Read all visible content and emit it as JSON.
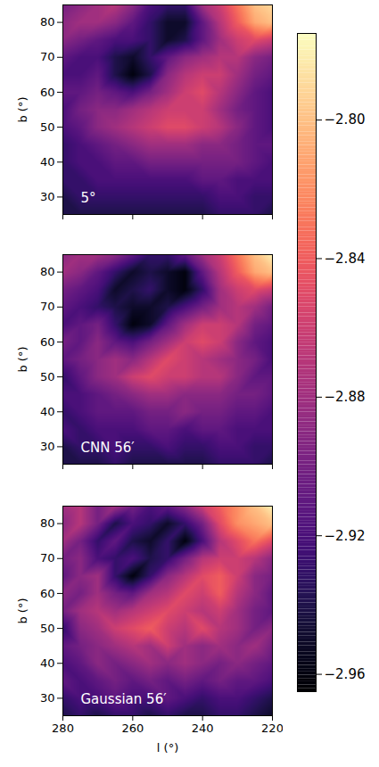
{
  "chart_data": {
    "type": "heatmap",
    "xlabel": "l (°)",
    "ylabel": "b (°)",
    "xlim": [
      280,
      220
    ],
    "ylim": [
      25,
      85
    ],
    "xticks": [
      280,
      260,
      240,
      220
    ],
    "yticks": [
      30,
      40,
      50,
      60,
      70,
      80
    ],
    "color": "magma",
    "zlim": [
      -2.965,
      -2.775
    ],
    "zticks": [
      {
        "value": -2.8,
        "label": "−2.80"
      },
      {
        "value": -2.84,
        "label": "−2.84"
      },
      {
        "value": -2.88,
        "label": "−2.88"
      },
      {
        "value": -2.92,
        "label": "−2.92"
      },
      {
        "value": -2.96,
        "label": "−2.96"
      }
    ],
    "l": [
      280,
      275,
      270,
      265,
      260,
      255,
      250,
      245,
      240,
      235,
      230,
      225,
      220
    ],
    "b": [
      85,
      80,
      75,
      70,
      65,
      60,
      55,
      50,
      45,
      40,
      35,
      30,
      25
    ],
    "panels": [
      {
        "title": "5°",
        "cells": [
          [
            -2.9,
            -2.89,
            -2.88,
            -2.87,
            -2.89,
            -2.92,
            -2.93,
            -2.93,
            -2.88,
            -2.86,
            -2.83,
            -2.8,
            -2.79
          ],
          [
            -2.89,
            -2.88,
            -2.88,
            -2.89,
            -2.91,
            -2.93,
            -2.95,
            -2.95,
            -2.91,
            -2.87,
            -2.84,
            -2.81,
            -2.8
          ],
          [
            -2.89,
            -2.9,
            -2.91,
            -2.92,
            -2.92,
            -2.93,
            -2.95,
            -2.94,
            -2.91,
            -2.88,
            -2.86,
            -2.85,
            -2.86
          ],
          [
            -2.91,
            -2.92,
            -2.92,
            -2.94,
            -2.95,
            -2.93,
            -2.91,
            -2.89,
            -2.88,
            -2.87,
            -2.87,
            -2.89,
            -2.9
          ],
          [
            -2.92,
            -2.92,
            -2.91,
            -2.94,
            -2.96,
            -2.94,
            -2.89,
            -2.87,
            -2.86,
            -2.86,
            -2.88,
            -2.9,
            -2.91
          ],
          [
            -2.91,
            -2.91,
            -2.9,
            -2.91,
            -2.92,
            -2.9,
            -2.88,
            -2.86,
            -2.85,
            -2.87,
            -2.89,
            -2.91,
            -2.92
          ],
          [
            -2.92,
            -2.9,
            -2.89,
            -2.89,
            -2.88,
            -2.87,
            -2.86,
            -2.86,
            -2.86,
            -2.88,
            -2.9,
            -2.91,
            -2.92
          ],
          [
            -2.92,
            -2.91,
            -2.89,
            -2.88,
            -2.87,
            -2.86,
            -2.85,
            -2.85,
            -2.86,
            -2.87,
            -2.89,
            -2.91,
            -2.92
          ],
          [
            -2.93,
            -2.92,
            -2.91,
            -2.9,
            -2.89,
            -2.88,
            -2.88,
            -2.88,
            -2.89,
            -2.89,
            -2.9,
            -2.91,
            -2.91
          ],
          [
            -2.93,
            -2.92,
            -2.92,
            -2.91,
            -2.91,
            -2.9,
            -2.9,
            -2.9,
            -2.9,
            -2.9,
            -2.9,
            -2.91,
            -2.92
          ],
          [
            -2.93,
            -2.93,
            -2.92,
            -2.92,
            -2.92,
            -2.92,
            -2.92,
            -2.92,
            -2.91,
            -2.91,
            -2.92,
            -2.92,
            -2.92
          ],
          [
            -2.94,
            -2.93,
            -2.93,
            -2.93,
            -2.93,
            -2.93,
            -2.93,
            -2.93,
            -2.93,
            -2.92,
            -2.92,
            -2.93,
            -2.93
          ],
          [
            -2.94,
            -2.94,
            -2.94,
            -2.94,
            -2.94,
            -2.94,
            -2.94,
            -2.94,
            -2.94,
            -2.93,
            -2.93,
            -2.93,
            -2.94
          ]
        ]
      },
      {
        "title": "CNN 56′",
        "cells": [
          [
            -2.89,
            -2.88,
            -2.88,
            -2.89,
            -2.91,
            -2.93,
            -2.93,
            -2.91,
            -2.88,
            -2.86,
            -2.83,
            -2.8,
            -2.78
          ],
          [
            -2.88,
            -2.89,
            -2.91,
            -2.93,
            -2.95,
            -2.94,
            -2.95,
            -2.96,
            -2.91,
            -2.87,
            -2.84,
            -2.81,
            -2.8
          ],
          [
            -2.9,
            -2.91,
            -2.92,
            -2.95,
            -2.94,
            -2.93,
            -2.95,
            -2.96,
            -2.93,
            -2.88,
            -2.86,
            -2.85,
            -2.86
          ],
          [
            -2.91,
            -2.92,
            -2.93,
            -2.94,
            -2.95,
            -2.95,
            -2.94,
            -2.92,
            -2.9,
            -2.88,
            -2.87,
            -2.88,
            -2.9
          ],
          [
            -2.92,
            -2.91,
            -2.9,
            -2.93,
            -2.96,
            -2.95,
            -2.91,
            -2.88,
            -2.86,
            -2.86,
            -2.87,
            -2.9,
            -2.91
          ],
          [
            -2.9,
            -2.91,
            -2.89,
            -2.91,
            -2.92,
            -2.9,
            -2.88,
            -2.86,
            -2.85,
            -2.86,
            -2.89,
            -2.91,
            -2.92
          ],
          [
            -2.91,
            -2.9,
            -2.89,
            -2.88,
            -2.89,
            -2.87,
            -2.85,
            -2.86,
            -2.87,
            -2.88,
            -2.89,
            -2.9,
            -2.92
          ],
          [
            -2.93,
            -2.91,
            -2.89,
            -2.88,
            -2.86,
            -2.85,
            -2.86,
            -2.86,
            -2.87,
            -2.87,
            -2.89,
            -2.91,
            -2.91
          ],
          [
            -2.92,
            -2.92,
            -2.91,
            -2.9,
            -2.89,
            -2.88,
            -2.88,
            -2.89,
            -2.89,
            -2.89,
            -2.9,
            -2.9,
            -2.91
          ],
          [
            -2.93,
            -2.92,
            -2.91,
            -2.91,
            -2.91,
            -2.9,
            -2.9,
            -2.89,
            -2.9,
            -2.9,
            -2.91,
            -2.91,
            -2.92
          ],
          [
            -2.92,
            -2.93,
            -2.92,
            -2.92,
            -2.92,
            -2.91,
            -2.91,
            -2.92,
            -2.91,
            -2.91,
            -2.92,
            -2.92,
            -2.92
          ],
          [
            -2.94,
            -2.93,
            -2.93,
            -2.92,
            -2.93,
            -2.93,
            -2.92,
            -2.93,
            -2.93,
            -2.92,
            -2.92,
            -2.93,
            -2.93
          ],
          [
            -2.94,
            -2.94,
            -2.94,
            -2.93,
            -2.94,
            -2.94,
            -2.94,
            -2.94,
            -2.94,
            -2.93,
            -2.93,
            -2.93,
            -2.94
          ]
        ]
      },
      {
        "title": "Gaussian 56′",
        "cells": [
          [
            -2.88,
            -2.87,
            -2.9,
            -2.88,
            -2.9,
            -2.92,
            -2.91,
            -2.89,
            -2.86,
            -2.84,
            -2.82,
            -2.8,
            -2.78
          ],
          [
            -2.89,
            -2.87,
            -2.9,
            -2.94,
            -2.92,
            -2.93,
            -2.95,
            -2.93,
            -2.9,
            -2.85,
            -2.82,
            -2.81,
            -2.8
          ],
          [
            -2.88,
            -2.9,
            -2.93,
            -2.91,
            -2.94,
            -2.95,
            -2.93,
            -2.96,
            -2.92,
            -2.87,
            -2.85,
            -2.83,
            -2.85
          ],
          [
            -2.9,
            -2.89,
            -2.92,
            -2.93,
            -2.92,
            -2.94,
            -2.93,
            -2.9,
            -2.87,
            -2.86,
            -2.86,
            -2.87,
            -2.89
          ],
          [
            -2.91,
            -2.89,
            -2.88,
            -2.93,
            -2.96,
            -2.93,
            -2.89,
            -2.87,
            -2.85,
            -2.84,
            -2.86,
            -2.89,
            -2.9
          ],
          [
            -2.89,
            -2.9,
            -2.88,
            -2.9,
            -2.91,
            -2.88,
            -2.87,
            -2.85,
            -2.86,
            -2.84,
            -2.87,
            -2.89,
            -2.91
          ],
          [
            -2.9,
            -2.88,
            -2.87,
            -2.88,
            -2.87,
            -2.86,
            -2.85,
            -2.86,
            -2.87,
            -2.86,
            -2.88,
            -2.9,
            -2.91
          ],
          [
            -2.93,
            -2.89,
            -2.88,
            -2.86,
            -2.85,
            -2.84,
            -2.86,
            -2.87,
            -2.85,
            -2.87,
            -2.88,
            -2.9,
            -2.89
          ],
          [
            -2.91,
            -2.9,
            -2.89,
            -2.88,
            -2.87,
            -2.88,
            -2.86,
            -2.88,
            -2.89,
            -2.88,
            -2.89,
            -2.88,
            -2.9
          ],
          [
            -2.92,
            -2.91,
            -2.89,
            -2.9,
            -2.89,
            -2.88,
            -2.89,
            -2.88,
            -2.89,
            -2.9,
            -2.89,
            -2.9,
            -2.91
          ],
          [
            -2.91,
            -2.92,
            -2.91,
            -2.9,
            -2.91,
            -2.9,
            -2.91,
            -2.9,
            -2.91,
            -2.9,
            -2.91,
            -2.91,
            -2.92
          ],
          [
            -2.93,
            -2.92,
            -2.92,
            -2.91,
            -2.92,
            -2.92,
            -2.91,
            -2.92,
            -2.93,
            -2.92,
            -2.92,
            -2.93,
            -2.94
          ],
          [
            -2.94,
            -2.93,
            -2.94,
            -2.93,
            -2.93,
            -2.94,
            -2.93,
            -2.94,
            -2.94,
            -2.93,
            -2.93,
            -2.94,
            -2.95
          ]
        ]
      }
    ]
  }
}
